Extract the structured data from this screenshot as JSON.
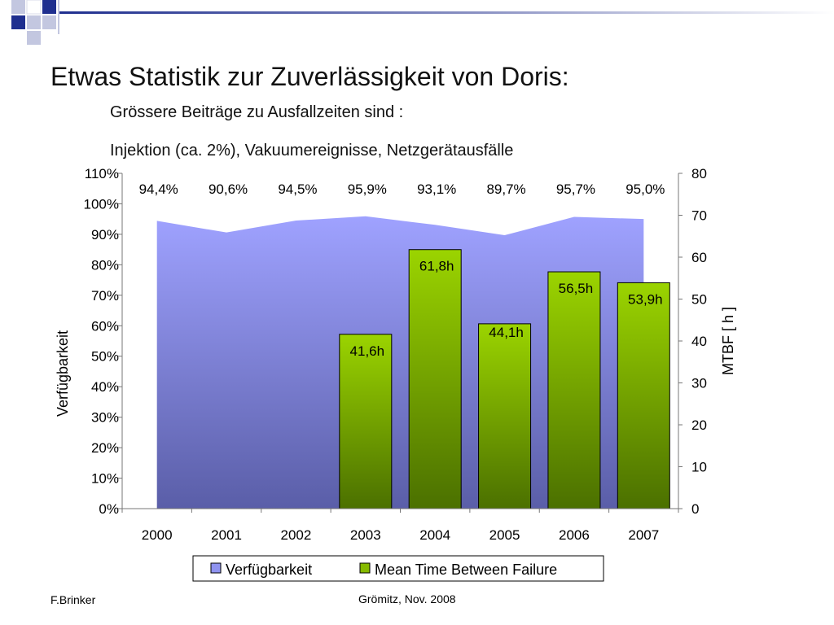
{
  "slide": {
    "title": "Etwas Statistik zur Zuverlässigkeit von Doris:",
    "subtitle_line1": "Grössere Beiträge zu Ausfallzeiten sind :",
    "subtitle_line2": "Injektion (ca. 2%), Vakuumereignisse, Netzgerätausfälle",
    "footer_author": "F.Brinker",
    "footer_place": "Grömitz, Nov. 2008"
  },
  "colors": {
    "deco_blue": "#1f2f8f",
    "deco_light": "#c3c7e0",
    "area_fill_top": "#9fa2ff",
    "area_fill_bottom": "#5a5ea8",
    "bar_fill_top": "#9bd400",
    "bar_fill_bottom": "#4b7000",
    "bar_stroke": "#000000"
  },
  "chart_data": {
    "type": "bar",
    "categories": [
      "2000",
      "2001",
      "2002",
      "2003",
      "2004",
      "2005",
      "2006",
      "2007"
    ],
    "series": [
      {
        "name": "Verfügbarkeit",
        "type": "area",
        "axis": "left",
        "values": [
          94.4,
          90.6,
          94.5,
          95.9,
          93.1,
          89.7,
          95.7,
          95.0
        ],
        "labels": [
          "94,4%",
          "90,6%",
          "94,5%",
          "95,9%",
          "93,1%",
          "89,7%",
          "95,7%",
          "95,0%"
        ]
      },
      {
        "name": "Mean Time Between Failure",
        "type": "bar",
        "axis": "right",
        "values": [
          null,
          null,
          null,
          41.6,
          61.8,
          44.1,
          56.5,
          53.9
        ],
        "labels": [
          "",
          "",
          "",
          "41,6h",
          "61,8h",
          "44,1h",
          "56,5h",
          "53,9h"
        ]
      }
    ],
    "y_left": {
      "label": "Verfügbarkeit",
      "min": 0,
      "max": 110,
      "ticks": [
        0,
        10,
        20,
        30,
        40,
        50,
        60,
        70,
        80,
        90,
        100,
        110
      ],
      "tick_labels": [
        "0%",
        "10%",
        "20%",
        "30%",
        "40%",
        "50%",
        "60%",
        "70%",
        "80%",
        "90%",
        "100%",
        "110%"
      ]
    },
    "y_right": {
      "label": "MTBF [ h ]",
      "min": 0,
      "max": 80,
      "ticks": [
        0,
        10,
        20,
        30,
        40,
        50,
        60,
        70,
        80
      ],
      "tick_labels": [
        "0",
        "10",
        "20",
        "30",
        "40",
        "50",
        "60",
        "70",
        "80"
      ]
    },
    "legend": {
      "position": "bottom",
      "entries": [
        "Verfügbarkeit",
        "Mean Time Between Failure"
      ]
    },
    "grid": false
  }
}
